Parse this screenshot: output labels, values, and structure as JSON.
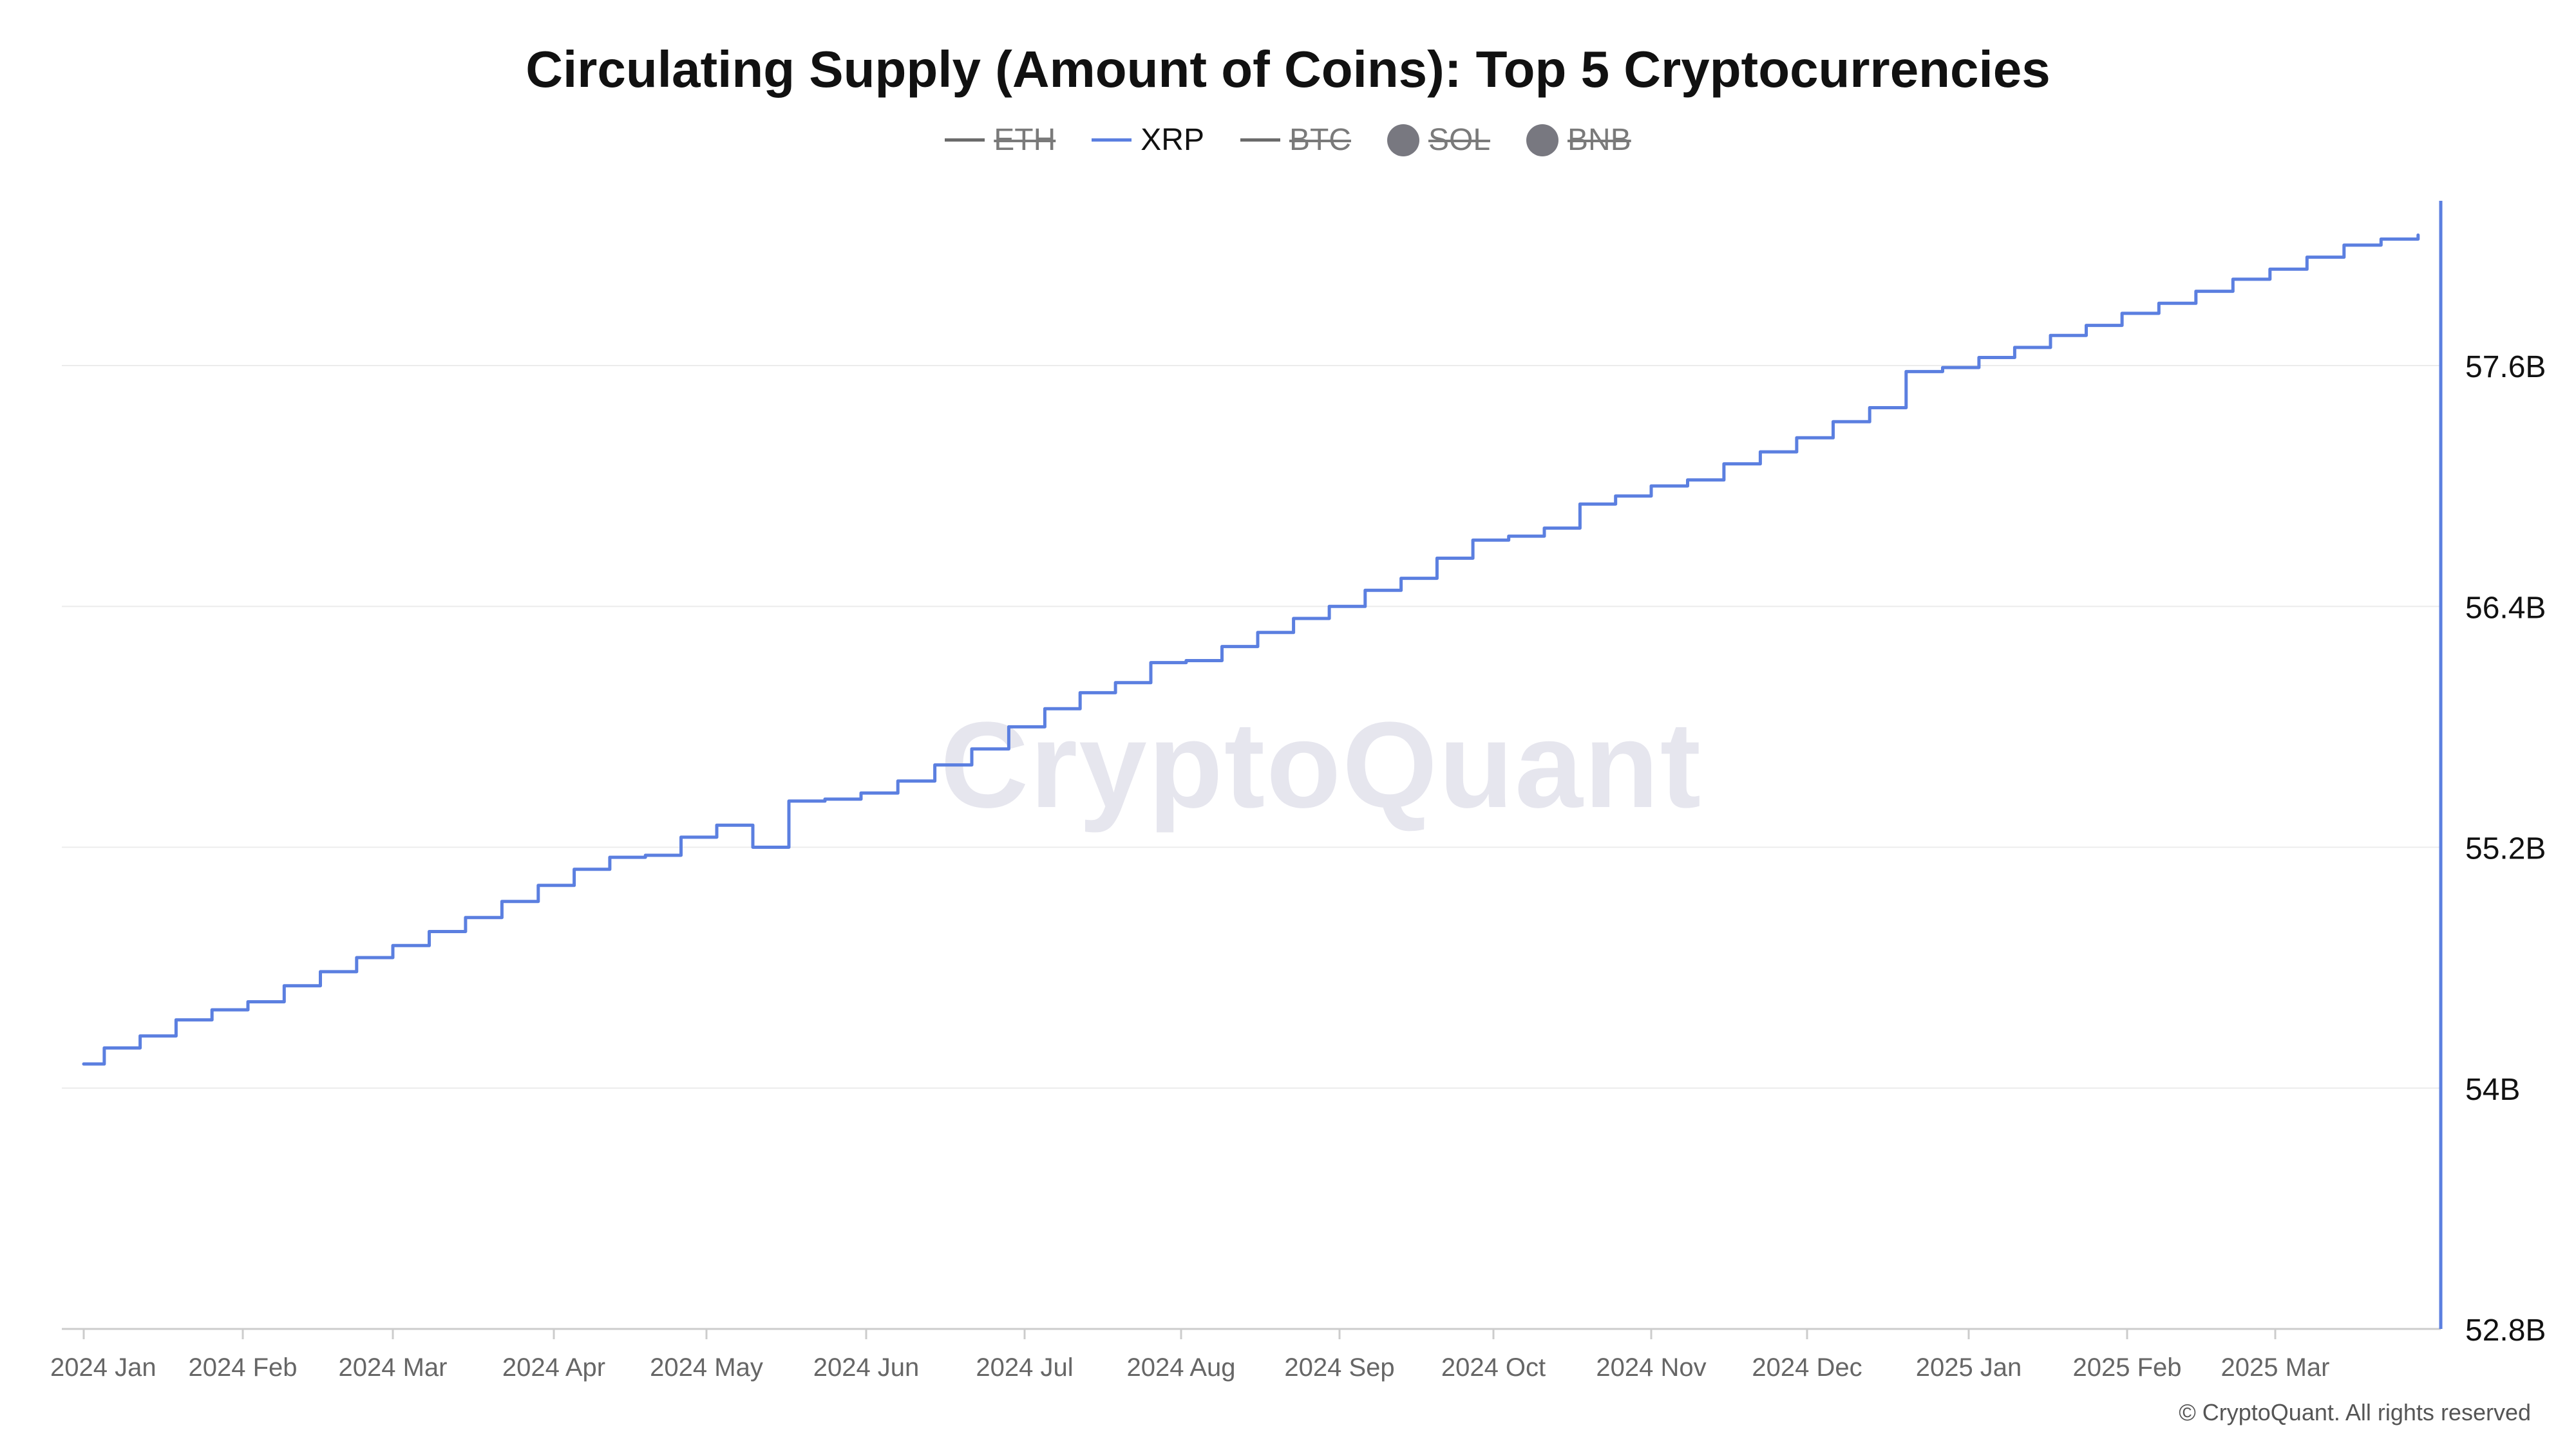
{
  "chart_data": {
    "type": "line",
    "title": "Circulating Supply (Amount of Coins): Top 5 Cryptocurrencies",
    "legend": [
      {
        "name": "ETH",
        "marker": "line",
        "visible": false,
        "color": "#6b6b6b"
      },
      {
        "name": "XRP",
        "marker": "line",
        "visible": true,
        "color": "#5b7fe0"
      },
      {
        "name": "BTC",
        "marker": "line",
        "visible": false,
        "color": "#6b6b6b"
      },
      {
        "name": "SOL",
        "marker": "dot",
        "visible": false,
        "color": "#787880"
      },
      {
        "name": "BNB",
        "marker": "dot",
        "visible": false,
        "color": "#787880"
      }
    ],
    "legend_position": "top-center",
    "x_ticks": [
      "2024 Jan",
      "2024 Feb",
      "2024 Mar",
      "2024 Apr",
      "2024 May",
      "2024 Jun",
      "2024 Jul",
      "2024 Aug",
      "2024 Sep",
      "2024 Oct",
      "2024 Nov",
      "2024 Dec",
      "2025 Jan",
      "2025 Feb",
      "2025 Mar"
    ],
    "y_ticks": [
      "52.8B",
      "54B",
      "55.2B",
      "56.4B",
      "57.6B"
    ],
    "ylim": [
      52.8,
      58.4
    ],
    "y_unit": "B",
    "y_axis_side": "right",
    "grid": "horizontal",
    "series": [
      {
        "name": "XRP",
        "color": "#5b7fe0",
        "x": [
          "2024-01-01",
          "2024-01-05",
          "2024-01-12",
          "2024-01-19",
          "2024-01-26",
          "2024-02-02",
          "2024-02-09",
          "2024-02-16",
          "2024-02-23",
          "2024-03-01",
          "2024-03-08",
          "2024-03-15",
          "2024-03-22",
          "2024-03-29",
          "2024-04-05",
          "2024-04-12",
          "2024-04-19",
          "2024-04-26",
          "2024-05-01",
          "2024-05-03",
          "2024-05-10",
          "2024-05-17",
          "2024-05-24",
          "2024-05-31",
          "2024-06-07",
          "2024-06-14",
          "2024-06-21",
          "2024-06-28",
          "2024-07-05",
          "2024-07-12",
          "2024-07-19",
          "2024-07-26",
          "2024-08-02",
          "2024-08-09",
          "2024-08-16",
          "2024-08-23",
          "2024-08-30",
          "2024-09-06",
          "2024-09-13",
          "2024-09-20",
          "2024-09-27",
          "2024-10-04",
          "2024-10-11",
          "2024-10-18",
          "2024-10-25",
          "2024-11-01",
          "2024-11-08",
          "2024-11-15",
          "2024-11-22",
          "2024-11-29",
          "2024-12-06",
          "2024-12-13",
          "2024-12-20",
          "2024-12-27",
          "2025-01-03",
          "2025-01-10",
          "2025-01-17",
          "2025-01-24",
          "2025-01-31",
          "2025-02-07",
          "2025-02-14",
          "2025-02-21",
          "2025-02-28",
          "2025-03-07",
          "2025-03-14",
          "2025-03-21",
          "2025-03-28"
        ],
        "values": [
          54.12,
          54.2,
          54.26,
          54.34,
          54.39,
          54.43,
          54.51,
          54.58,
          54.65,
          54.71,
          54.78,
          54.85,
          54.93,
          55.01,
          55.09,
          55.15,
          55.16,
          55.25,
          55.25,
          55.31,
          55.2,
          55.43,
          55.44,
          55.47,
          55.53,
          55.61,
          55.69,
          55.8,
          55.89,
          55.97,
          56.02,
          56.12,
          56.13,
          56.2,
          56.27,
          56.34,
          56.4,
          56.48,
          56.54,
          56.64,
          56.73,
          56.75,
          56.79,
          56.91,
          56.95,
          57.0,
          57.03,
          57.11,
          57.17,
          57.24,
          57.32,
          57.39,
          57.57,
          57.59,
          57.64,
          57.69,
          57.75,
          57.8,
          57.86,
          57.91,
          57.97,
          58.03,
          58.08,
          58.14,
          58.2,
          58.23,
          58.25
        ]
      }
    ]
  },
  "watermark": "CryptoQuant",
  "copyright": "© CryptoQuant. All rights reserved"
}
